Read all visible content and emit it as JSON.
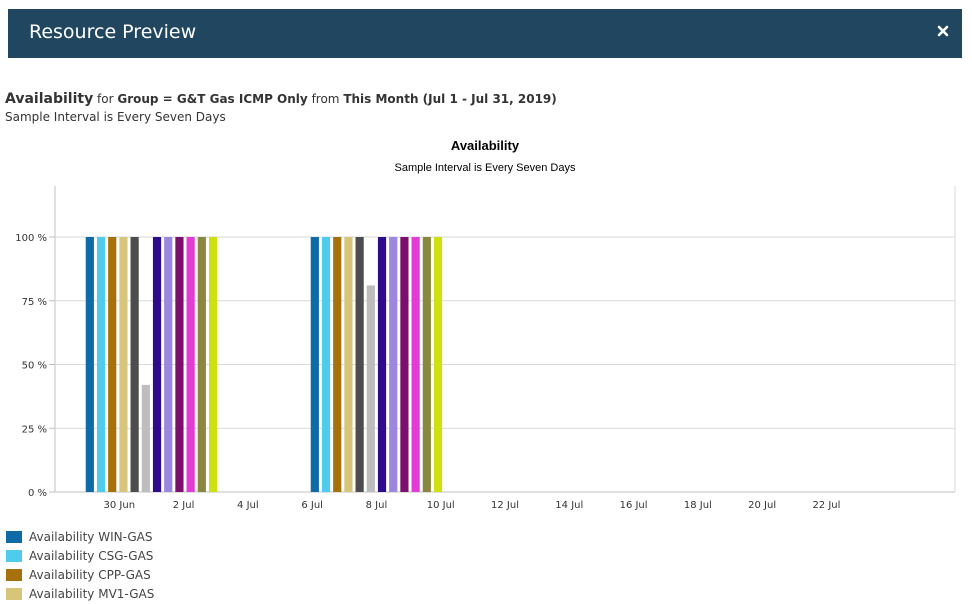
{
  "window": {
    "title": "Resource Preview"
  },
  "summary": {
    "metric": "Availability",
    "for_text": "for",
    "group": "Group = G&T Gas ICMP Only",
    "from_text": "from",
    "period": "This Month (Jul 1 - Jul 31, 2019)",
    "interval": "Sample Interval is Every Seven Days"
  },
  "chart_data": {
    "type": "bar",
    "title": "Availability",
    "subtitle": "Sample Interval is Every Seven Days",
    "ylabel": "",
    "xlabel": "",
    "ylim": [
      0,
      120
    ],
    "y_ticks": [
      0,
      25,
      50,
      75,
      100
    ],
    "y_tick_labels": [
      "0 %",
      "25 %",
      "50 %",
      "75 %",
      "100 %"
    ],
    "x_ticks": [
      "2019-06-30",
      "2019-07-02",
      "2019-07-04",
      "2019-07-06",
      "2019-07-08",
      "2019-07-10",
      "2019-07-12",
      "2019-07-14",
      "2019-07-16",
      "2019-07-18",
      "2019-07-20",
      "2019-07-22"
    ],
    "x_tick_labels": [
      "30 Jun",
      "2 Jul",
      "4 Jul",
      "6 Jul",
      "8 Jul",
      "10 Jul",
      "12 Jul",
      "14 Jul",
      "16 Jul",
      "18 Jul",
      "20 Jul",
      "22 Jul"
    ],
    "xlim": [
      "2019-06-28",
      "2019-07-26"
    ],
    "categories": [
      "2019-07-01",
      "2019-07-08"
    ],
    "grid": true,
    "legend_position": "bottom-left",
    "series": [
      {
        "name": "Availability WIN-GAS",
        "color": "#0e6ba8",
        "values": [
          100,
          100
        ]
      },
      {
        "name": "Availability CSG-GAS",
        "color": "#4fcbee",
        "values": [
          100,
          100
        ]
      },
      {
        "name": "Availability CPP-GAS",
        "color": "#a6710a",
        "values": [
          100,
          100
        ]
      },
      {
        "name": "Availability MV1-GAS",
        "color": "#d7c67a",
        "values": [
          100,
          100
        ]
      },
      {
        "color": "#4d4d4d",
        "values": [
          100,
          100
        ]
      },
      {
        "color": "#bdbdbd",
        "values": [
          42,
          81
        ]
      },
      {
        "color": "#2f0a8c",
        "values": [
          100,
          100
        ]
      },
      {
        "color": "#9b86e0",
        "values": [
          100,
          100
        ]
      },
      {
        "color": "#7b0f6b",
        "values": [
          100,
          100
        ]
      },
      {
        "color": "#e23bd6",
        "values": [
          100,
          100
        ]
      },
      {
        "color": "#8a8840",
        "values": [
          100,
          100
        ]
      },
      {
        "color": "#cde011",
        "values": [
          100,
          100
        ]
      }
    ]
  },
  "colors": {
    "titlebar": "#214760",
    "grid": "#d9d9d9"
  }
}
